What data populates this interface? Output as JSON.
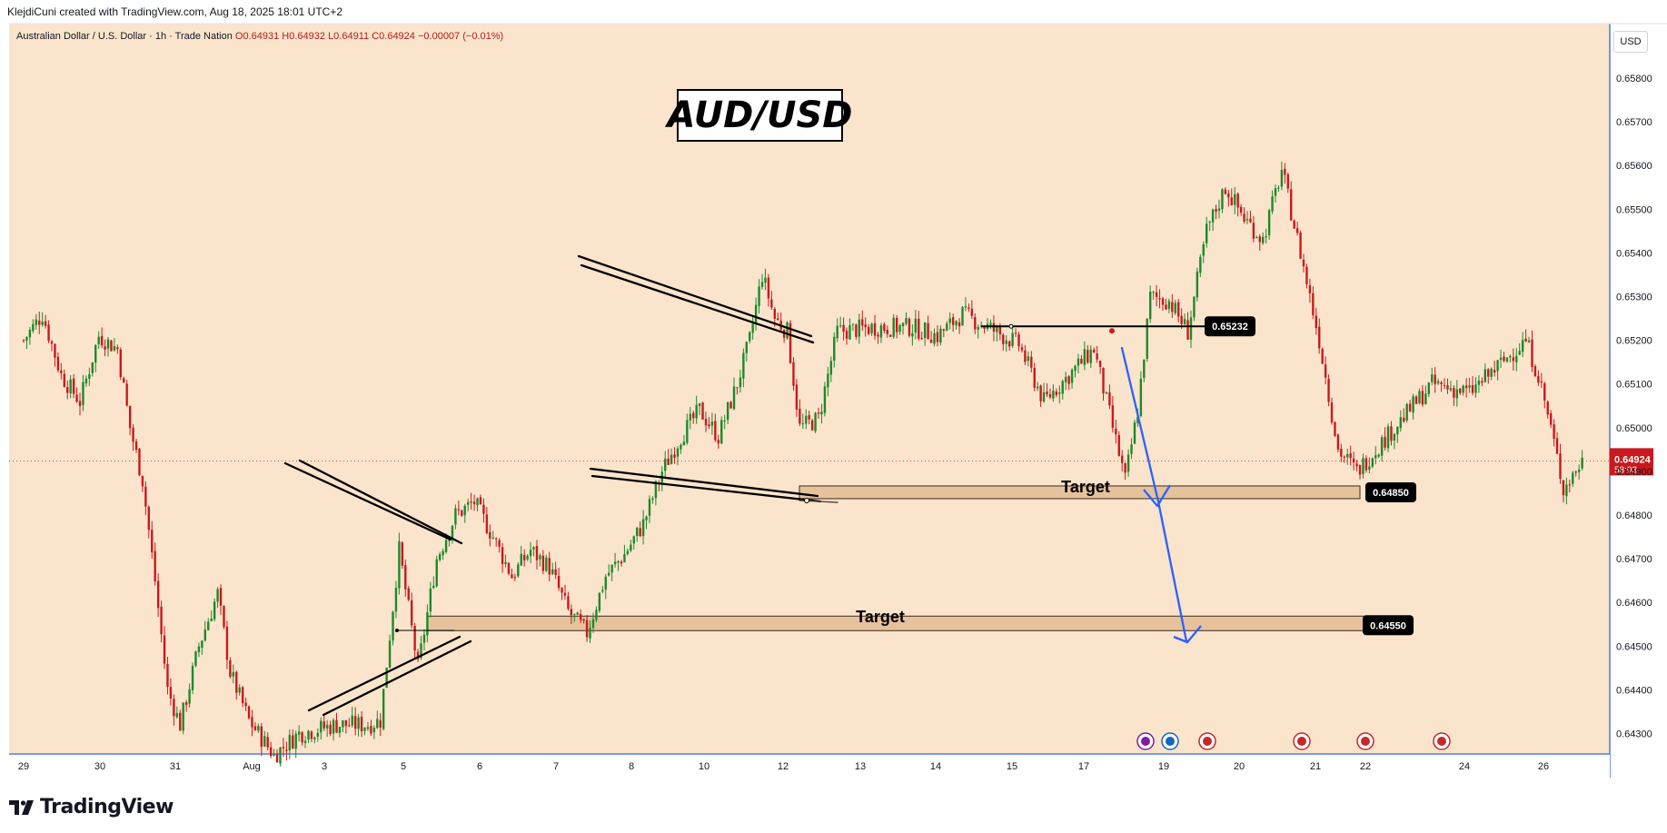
{
  "header": {
    "attribution": "KlejdiCuni created with TradingView.com, Aug 18, 2025 18:01 UTC+2"
  },
  "legend": {
    "symbol": "Australian Dollar / U.S. Dollar · 1h · Trade Nation",
    "open": "O0.64931",
    "high": "H0.64932",
    "low": "L0.64911",
    "close": "C0.64924",
    "change": "−0.00007 (−0.01%)"
  },
  "currency_button": "USD",
  "brand": {
    "name": "TradingView",
    "logo_icon": "tradingview-logo-icon"
  },
  "colors": {
    "background": "#fbe4cc",
    "up": "#1b8a2a",
    "down": "#c8191e",
    "arrow": "#2962ff",
    "zone": "#e6c29c"
  },
  "chart_data": {
    "type": "candlestick",
    "title": "AUD/USD",
    "y_axis": {
      "ticks": [
        "0.65800",
        "0.65700",
        "0.65600",
        "0.65500",
        "0.65400",
        "0.65300",
        "0.65200",
        "0.65100",
        "0.65000",
        "0.64900",
        "0.64800",
        "0.64700",
        "0.64600",
        "0.64500",
        "0.64400",
        "0.64300"
      ],
      "ylim": [
        0.64275,
        0.65877
      ]
    },
    "x_axis": {
      "ticks": [
        "29",
        "30",
        "31",
        "Aug",
        "3",
        "5",
        "6",
        "7",
        "8",
        "10",
        "12",
        "13",
        "14",
        "15",
        "17",
        "19",
        "20",
        "21",
        "22",
        "24",
        "26"
      ]
    },
    "last_price": {
      "value": "0.64924",
      "countdown": "58:03"
    },
    "levels": [
      {
        "name": "resistance",
        "value": 0.65232,
        "label": "0.65232"
      },
      {
        "name": "target-1",
        "value": 0.6485,
        "label": "0.64850",
        "text": "Target"
      },
      {
        "name": "target-2",
        "value": 0.6455,
        "label": "0.64550",
        "text": "Target"
      }
    ],
    "close_path": [
      [
        "Jul 29 00:00",
        0.652
      ],
      [
        "Jul 29 06:00",
        0.6526
      ],
      [
        "Jul 29 12:00",
        0.6512
      ],
      [
        "Jul 29 18:00",
        0.6506
      ],
      [
        "Jul 30 00:00",
        0.6521
      ],
      [
        "Jul 30 06:00",
        0.6518
      ],
      [
        "Jul 30 10:00",
        0.65
      ],
      [
        "Jul 30 14:00",
        0.6488
      ],
      [
        "Jul 30 18:00",
        0.6465
      ],
      [
        "Jul 30 22:00",
        0.644
      ],
      [
        "Jul 31 02:00",
        0.6432
      ],
      [
        "Jul 31 08:00",
        0.645
      ],
      [
        "Jul 31 14:00",
        0.6462
      ],
      [
        "Jul 31 18:00",
        0.6444
      ],
      [
        "Aug 1 00:00",
        0.6433
      ],
      [
        "Aug 1 08:00",
        0.6425
      ],
      [
        "Aug 1 16:00",
        0.643
      ],
      [
        "Aug 2 04:00",
        0.6432
      ],
      [
        "Aug 2 14:00",
        0.6432
      ],
      [
        "Aug 2 18:00",
        0.6433
      ],
      [
        "Aug 3 00:00",
        0.6472
      ],
      [
        "Aug 3 06:00",
        0.6445
      ],
      [
        "Aug 3 12:00",
        0.647
      ],
      [
        "Aug 3 18:00",
        0.648
      ],
      [
        "Aug 4 00:00",
        0.6483
      ],
      [
        "Aug 4 06:00",
        0.6475
      ],
      [
        "Aug 4 12:00",
        0.6466
      ],
      [
        "Aug 4 18:00",
        0.6472
      ],
      [
        "Aug 5 00:00",
        0.6468
      ],
      [
        "Aug 5 06:00",
        0.6458
      ],
      [
        "Aug 5 12:00",
        0.6453
      ],
      [
        "Aug 5 18:00",
        0.6466
      ],
      [
        "Aug 6 00:00",
        0.6471
      ],
      [
        "Aug 6 06:00",
        0.6478
      ],
      [
        "Aug 6 12:00",
        0.649
      ],
      [
        "Aug 6 18:00",
        0.6498
      ],
      [
        "Aug 7 00:00",
        0.6504
      ],
      [
        "Aug 7 06:00",
        0.6498
      ],
      [
        "Aug 7 12:00",
        0.651
      ],
      [
        "Aug 7 16:00",
        0.652
      ],
      [
        "Aug 7 20:00",
        0.6535
      ],
      [
        "Aug 8 00:00",
        0.6525
      ],
      [
        "Aug 8 04:00",
        0.6522
      ],
      [
        "Aug 8 08:00",
        0.65
      ],
      [
        "Aug 8 14:00",
        0.6502
      ],
      [
        "Aug 8 20:00",
        0.6522
      ],
      [
        "Aug 9 08:00",
        0.6523
      ],
      [
        "Aug 9 20:00",
        0.6523
      ],
      [
        "Aug 10 04:00",
        0.6521
      ],
      [
        "Aug 10 12:00",
        0.6526
      ],
      [
        "Aug 10 20:00",
        0.6523
      ],
      [
        "Aug 11 06:00",
        0.6519
      ],
      [
        "Aug 11 14:00",
        0.6506
      ],
      [
        "Aug 11 22:00",
        0.6512
      ],
      [
        "Aug 12 06:00",
        0.6518
      ],
      [
        "Aug 12 12:00",
        0.65
      ],
      [
        "Aug 12 16:00",
        0.6488
      ],
      [
        "Aug 12 20:00",
        0.6504
      ],
      [
        "Aug 13 00:00",
        0.653
      ],
      [
        "Aug 13 06:00",
        0.6529
      ],
      [
        "Aug 13 12:00",
        0.6522
      ],
      [
        "Aug 13 18:00",
        0.6545
      ],
      [
        "Aug 14 00:00",
        0.6555
      ],
      [
        "Aug 14 06:00",
        0.6548
      ],
      [
        "Aug 14 12:00",
        0.6543
      ],
      [
        "Aug 14 18:00",
        0.6559
      ],
      [
        "Aug 15 00:00",
        0.654
      ],
      [
        "Aug 15 06:00",
        0.652
      ],
      [
        "Aug 15 12:00",
        0.6495
      ],
      [
        "Aug 15 18:00",
        0.649
      ],
      [
        "Aug 16 06:00",
        0.65
      ],
      [
        "Aug 16 18:00",
        0.651
      ],
      [
        "Aug 17 06:00",
        0.6508
      ],
      [
        "Aug 17 18:00",
        0.6516
      ],
      [
        "Aug 18 00:00",
        0.652
      ],
      [
        "Aug 18 04:00",
        0.6512
      ],
      [
        "Aug 18 08:00",
        0.65
      ],
      [
        "Aug 18 12:00",
        0.6486
      ],
      [
        "Aug 18 18:00",
        0.64924
      ]
    ]
  }
}
